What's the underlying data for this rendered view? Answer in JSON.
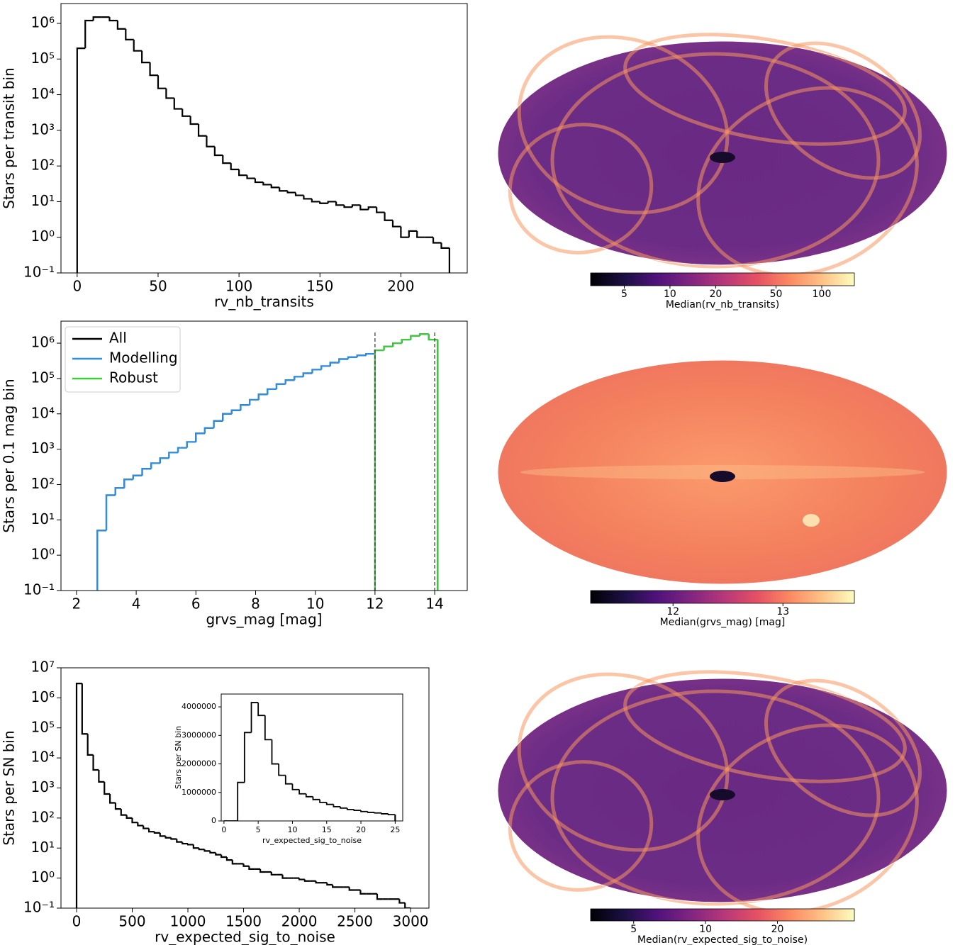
{
  "chart_data": [
    {
      "type": "histogram",
      "xlabel": "rv_nb_transits",
      "ylabel": "Stars per transit bin",
      "yscale": "log",
      "xlim": [
        -10,
        241
      ],
      "ylim": [
        0.1,
        3600000
      ],
      "xticks": [
        0,
        50,
        100,
        150,
        200
      ],
      "yticks": [
        {
          "value": 0.1,
          "label": "10⁻¹"
        },
        {
          "value": 1,
          "label": "10⁰"
        },
        {
          "value": 10,
          "label": "10¹"
        },
        {
          "value": 100,
          "label": "10²"
        },
        {
          "value": 1000,
          "label": "10³"
        },
        {
          "value": 10000,
          "label": "10⁴"
        },
        {
          "value": 100000,
          "label": "10⁵"
        },
        {
          "value": 1000000,
          "label": "10⁶"
        }
      ],
      "color": "#000000",
      "bins": [
        0,
        5,
        10,
        15,
        20,
        25,
        30,
        35,
        40,
        45,
        50,
        55,
        60,
        65,
        70,
        75,
        80,
        85,
        90,
        95,
        100,
        105,
        110,
        115,
        120,
        125,
        130,
        135,
        140,
        145,
        150,
        155,
        160,
        165,
        170,
        175,
        180,
        185,
        190,
        195,
        200,
        205,
        210,
        215,
        220,
        225,
        230
      ],
      "values": [
        200000,
        1200000,
        1500000,
        1500000,
        1200000,
        700000,
        350000,
        170000,
        80000,
        35000,
        15000,
        8000,
        4000,
        2500,
        1500,
        700,
        350,
        200,
        120,
        80,
        55,
        45,
        35,
        30,
        25,
        20,
        18,
        15,
        12,
        10,
        9,
        10,
        8,
        7,
        8,
        6,
        7,
        5,
        3,
        2,
        1,
        1.5,
        1,
        1,
        0.7,
        0.5
      ]
    },
    {
      "type": "skymap",
      "colormap": "magma",
      "cscale": "log",
      "clim": [
        3,
        164
      ],
      "cticks": [
        5,
        10,
        20,
        50,
        100
      ],
      "colorbar_label": "Median(rv_nb_transits)"
    },
    {
      "type": "histogram",
      "xlabel": "grvs_mag [mag]",
      "ylabel": "Stars per 0.1 mag bin",
      "yscale": "log",
      "xlim": [
        1.48,
        15.09
      ],
      "ylim": [
        0.1,
        4200000
      ],
      "xticks": [
        2,
        4,
        6,
        8,
        10,
        12,
        14
      ],
      "yticks": [
        {
          "value": 0.1,
          "label": "10⁻¹"
        },
        {
          "value": 1,
          "label": "10⁰"
        },
        {
          "value": 10,
          "label": "10¹"
        },
        {
          "value": 100,
          "label": "10²"
        },
        {
          "value": 1000,
          "label": "10³"
        },
        {
          "value": 10000,
          "label": "10⁴"
        },
        {
          "value": 100000,
          "label": "10⁵"
        },
        {
          "value": 1000000,
          "label": "10⁶"
        }
      ],
      "legend": "upper left",
      "vlines": [
        12,
        14
      ],
      "bins": [
        2.7,
        3,
        3.3,
        3.6,
        3.9,
        4.2,
        4.5,
        4.8,
        5.1,
        5.4,
        5.7,
        6,
        6.3,
        6.6,
        6.9,
        7.2,
        7.5,
        7.8,
        8.1,
        8.4,
        8.7,
        9,
        9.3,
        9.6,
        9.9,
        10.2,
        10.5,
        10.8,
        11.1,
        11.4,
        11.7,
        12,
        12.3,
        12.6,
        12.9,
        13.2,
        13.5,
        13.8,
        14.1
      ],
      "series": [
        {
          "name": "All",
          "color": "#000000",
          "values": [
            5,
            50,
            80,
            140,
            180,
            280,
            400,
            560,
            800,
            1100,
            1600,
            2800,
            4000,
            6300,
            10000,
            12600,
            17800,
            25000,
            35500,
            50000,
            70000,
            90000,
            112000,
            141000,
            178000,
            224000,
            282000,
            355000,
            400000,
            450000,
            500000,
            630000,
            800000,
            1000000,
            1260000,
            1600000,
            1800000,
            1260000
          ]
        },
        {
          "name": "Modelling",
          "color": "#2b8fe6",
          "values": [
            5,
            50,
            80,
            140,
            180,
            280,
            400,
            560,
            800,
            1100,
            1600,
            2800,
            4000,
            6300,
            10000,
            12600,
            17800,
            25000,
            35500,
            50000,
            70000,
            90000,
            112000,
            141000,
            178000,
            224000,
            282000,
            355000,
            400000,
            450000,
            500000,
            null,
            null,
            null,
            null,
            null,
            null,
            null
          ]
        },
        {
          "name": "Robust",
          "color": "#3ccc3c",
          "values": [
            null,
            null,
            null,
            null,
            null,
            null,
            null,
            null,
            null,
            null,
            null,
            null,
            null,
            null,
            null,
            null,
            null,
            null,
            null,
            null,
            null,
            null,
            null,
            null,
            null,
            null,
            null,
            null,
            null,
            null,
            null,
            630000,
            800000,
            1000000,
            1260000,
            1600000,
            1800000,
            1260000
          ]
        }
      ]
    },
    {
      "type": "skymap",
      "colormap": "magma",
      "cscale": "linear",
      "clim": [
        11.25,
        13.65
      ],
      "cticks": [
        12,
        13
      ],
      "colorbar_label": "Median(grvs_mag) [mag]"
    },
    {
      "type": "histogram",
      "xlabel": "rv_expected_sig_to_noise",
      "ylabel": "Stars per SN bin",
      "yscale": "log",
      "xlim": [
        -140,
        3165
      ],
      "ylim": [
        0.1,
        10000000
      ],
      "xticks": [
        0,
        500,
        1000,
        1500,
        2000,
        2500,
        3000
      ],
      "yticks": [
        {
          "value": 0.1,
          "label": "10⁻¹"
        },
        {
          "value": 1,
          "label": "10⁰"
        },
        {
          "value": 10,
          "label": "10¹"
        },
        {
          "value": 100,
          "label": "10²"
        },
        {
          "value": 1000,
          "label": "10³"
        },
        {
          "value": 10000,
          "label": "10⁴"
        },
        {
          "value": 100000,
          "label": "10⁵"
        },
        {
          "value": 1000000,
          "label": "10⁶"
        },
        {
          "value": 10000000,
          "label": "10⁷"
        }
      ],
      "color": "#000000",
      "bins": [
        0,
        50,
        100,
        150,
        200,
        250,
        300,
        350,
        400,
        450,
        500,
        550,
        600,
        650,
        700,
        750,
        800,
        850,
        900,
        950,
        1000,
        1050,
        1100,
        1150,
        1200,
        1250,
        1300,
        1350,
        1400,
        1450,
        1500,
        1550,
        1600,
        1650,
        1700,
        1750,
        1800,
        1850,
        1900,
        1950,
        2000,
        2050,
        2100,
        2150,
        2200,
        2250,
        2300,
        2350,
        2400,
        2450,
        2500,
        2550,
        2600,
        2650,
        2700,
        2750,
        2800,
        2850,
        2900,
        2950,
        3000
      ],
      "values": [
        3000000,
        63000,
        12600,
        4000,
        1600,
        630,
        320,
        200,
        126,
        100,
        71,
        56,
        45,
        35,
        32,
        25,
        22,
        20,
        16,
        14,
        13,
        10,
        9,
        8,
        7,
        6,
        5,
        4,
        3,
        3,
        2.5,
        2,
        2,
        1.6,
        1.6,
        1.3,
        1.3,
        1,
        1,
        1,
        0.9,
        0.8,
        0.8,
        0.7,
        0.7,
        0.6,
        0.5,
        0.5,
        0.5,
        0.4,
        0.4,
        0.3,
        0.3,
        0.3,
        0.2,
        0.2,
        0.2,
        0.2,
        0.15,
        0
      ]
    },
    {
      "type": "histogram",
      "xlabel": "rv_expected_sig_to_noise",
      "ylabel": "Stars per SN bin",
      "yscale": "linear",
      "xlim": [
        -0.4,
        26.1
      ],
      "ylim": [
        0,
        4450000
      ],
      "xticks": [
        0,
        5,
        10,
        15,
        20,
        25
      ],
      "yticks": [
        0,
        1000000,
        2000000,
        3000000,
        4000000
      ],
      "color": "#000000",
      "bins": [
        0,
        1,
        2,
        3,
        4,
        5,
        6,
        7,
        8,
        9,
        10,
        11,
        12,
        13,
        14,
        15,
        16,
        17,
        18,
        19,
        20,
        21,
        22,
        23,
        24,
        25
      ],
      "values": [
        0,
        0,
        1350000,
        3100000,
        4150000,
        3700000,
        2850000,
        2000000,
        1600000,
        1300000,
        1100000,
        950000,
        850000,
        750000,
        650000,
        580000,
        500000,
        450000,
        400000,
        370000,
        330000,
        300000,
        280000,
        250000,
        220000
      ]
    },
    {
      "type": "skymap",
      "colormap": "magma",
      "cscale": "log",
      "clim": [
        3.3,
        42
      ],
      "cticks": [
        5,
        10,
        20
      ],
      "colorbar_label": "Median(rv_expected_sig_to_noise)"
    }
  ]
}
